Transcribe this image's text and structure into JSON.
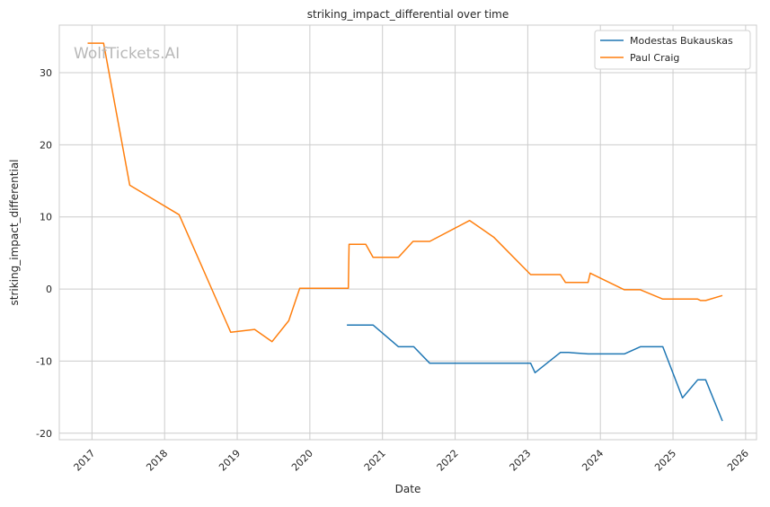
{
  "chart_data": {
    "type": "line",
    "title": "striking_impact_differential over time",
    "xlabel": "Date",
    "ylabel": "striking_impact_differential",
    "xlim": [
      2016.55,
      2026.15
    ],
    "ylim": [
      -20.9,
      36.6
    ],
    "x_ticks": [
      2017,
      2018,
      2019,
      2020,
      2021,
      2022,
      2023,
      2024,
      2025,
      2026
    ],
    "y_ticks": [
      -20,
      -10,
      0,
      10,
      20,
      30
    ],
    "grid": true,
    "legend_position": "top-right",
    "watermark": "WolfTickets.AI",
    "series": [
      {
        "name": "Modestas Bukauskas",
        "color": "#1f77b4",
        "x": [
          2020.51,
          2020.87,
          2021.22,
          2021.43,
          2021.65,
          2023.04,
          2023.1,
          2023.45,
          2023.56,
          2023.83,
          2024.33,
          2024.55,
          2024.86,
          2025.13,
          2025.34,
          2025.45,
          2025.68
        ],
        "y": [
          -5.0,
          -5.0,
          -8.0,
          -8.0,
          -10.3,
          -10.3,
          -11.6,
          -8.8,
          -8.8,
          -9.0,
          -9.0,
          -8.0,
          -8.0,
          -15.1,
          -12.6,
          -12.6,
          -18.3
        ]
      },
      {
        "name": "Paul Craig",
        "color": "#ff7f0e",
        "x": [
          2016.94,
          2017.16,
          2017.52,
          2018.2,
          2018.91,
          2019.24,
          2019.48,
          2019.71,
          2019.86,
          2020.53,
          2020.54,
          2020.77,
          2020.87,
          2021.22,
          2021.42,
          2021.65,
          2022.2,
          2022.53,
          2023.04,
          2023.45,
          2023.52,
          2023.83,
          2023.86,
          2024.33,
          2024.55,
          2024.86,
          2025.34,
          2025.38,
          2025.45,
          2025.68
        ],
        "y": [
          34.1,
          34.1,
          14.4,
          10.3,
          -6.0,
          -5.6,
          -7.3,
          -4.4,
          0.1,
          0.1,
          6.2,
          6.2,
          4.4,
          4.4,
          6.6,
          6.6,
          9.5,
          7.2,
          2.0,
          2.0,
          0.9,
          0.9,
          2.2,
          -0.1,
          -0.1,
          -1.4,
          -1.4,
          -1.6,
          -1.6,
          -0.9
        ]
      }
    ]
  }
}
